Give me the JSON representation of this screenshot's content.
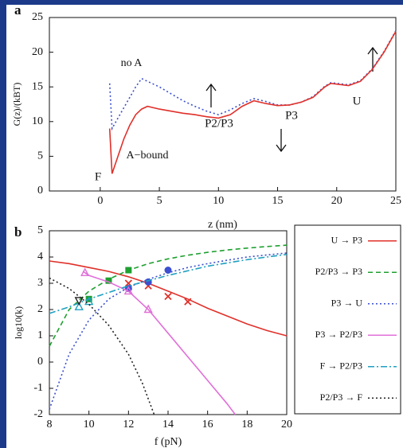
{
  "chart_data": [
    {
      "type": "line",
      "panel_label": "a",
      "x_label": "z (nm)",
      "y_label": "G(z)/(kBT)",
      "xlim": [
        -4.3,
        25
      ],
      "xticks": [
        0,
        5,
        10,
        15,
        20,
        25
      ],
      "ylim": [
        0,
        25
      ],
      "yticks": [
        0,
        5,
        10,
        15,
        20,
        25
      ],
      "x": [
        0.8,
        1.0,
        1.5,
        2,
        2.5,
        3,
        3.5,
        4,
        5,
        6,
        7,
        8,
        9,
        10,
        11,
        12,
        13,
        14,
        15,
        16,
        17,
        18,
        19,
        19.5,
        20,
        21,
        22,
        23,
        24,
        25
      ],
      "series": [
        {
          "name": "no A",
          "color": "#3b4fd0",
          "dash": "dotted",
          "values": [
            15.5,
            9,
            10.5,
            12,
            13.5,
            15,
            16.2,
            15.8,
            15,
            14,
            13,
            12.2,
            11.5,
            11,
            11.7,
            12.6,
            13.3,
            12.9,
            12.4,
            12.4,
            12.8,
            13.6,
            15.1,
            15.6,
            15.5,
            15.3,
            15.9,
            17.6,
            20.1,
            23.1
          ]
        },
        {
          "name": "A−bound",
          "color": "#e0302a",
          "dash": "solid",
          "values": [
            9,
            2.5,
            5,
            7.5,
            9.5,
            11,
            11.8,
            12.2,
            11.8,
            11.5,
            11.2,
            11,
            10.7,
            10.5,
            11,
            12.2,
            13,
            12.6,
            12.3,
            12.4,
            12.8,
            13.5,
            15,
            15.5,
            15.4,
            15.2,
            15.8,
            17.5,
            20,
            23
          ]
        }
      ],
      "annotations": [
        "F",
        "P2/P3",
        "P3",
        "U"
      ]
    },
    {
      "type": "line",
      "panel_label": "b",
      "x_label": "f (pN)",
      "y_label": "log10(k)",
      "xlim": [
        8,
        20
      ],
      "xticks": [
        8,
        10,
        12,
        14,
        16,
        18,
        20
      ],
      "ylim": [
        -2,
        5
      ],
      "yticks": [
        -2,
        -1,
        0,
        1,
        2,
        3,
        4,
        5
      ],
      "series": [
        {
          "name": "U → P3",
          "color": "#e0302a",
          "dash": "solid",
          "marker": "x",
          "x": [
            8,
            9,
            10,
            11,
            12,
            13,
            14,
            15,
            16,
            17,
            18,
            19,
            20
          ],
          "values": [
            3.85,
            3.75,
            3.6,
            3.45,
            3.25,
            3.0,
            2.7,
            2.4,
            2.05,
            1.75,
            1.45,
            1.2,
            1.0
          ],
          "marker_x": [
            12,
            13,
            14,
            15
          ],
          "marker_values": [
            3.0,
            2.9,
            2.5,
            2.3
          ]
        },
        {
          "name": "P2/P3 → P3",
          "color": "#1fa030",
          "dash": "dashed",
          "marker": "square",
          "x": [
            8,
            9,
            10,
            11,
            12,
            13,
            14,
            15,
            16,
            17,
            18,
            19,
            20
          ],
          "values": [
            0.6,
            2.0,
            2.7,
            3.15,
            3.5,
            3.75,
            3.93,
            4.07,
            4.18,
            4.27,
            4.34,
            4.4,
            4.45
          ],
          "marker_x": [
            10,
            11,
            12
          ],
          "marker_values": [
            2.4,
            3.1,
            3.5
          ]
        },
        {
          "name": "P3 → U",
          "color": "#3b4fd0",
          "dash": "dotted",
          "marker": "circle",
          "x": [
            8,
            9,
            10,
            11,
            12,
            13,
            14,
            15,
            16,
            17,
            18,
            19,
            20
          ],
          "values": [
            -1.8,
            0.3,
            1.6,
            2.4,
            2.85,
            3.15,
            3.4,
            3.6,
            3.75,
            3.88,
            4.0,
            4.08,
            4.15
          ],
          "marker_x": [
            12,
            13,
            14
          ],
          "marker_values": [
            2.8,
            3.05,
            3.5
          ]
        },
        {
          "name": "P3 → P2/P3",
          "color": "#e070d8",
          "dash": "solid",
          "marker": "triangle",
          "x": [
            9.7,
            10,
            11,
            12,
            13,
            14,
            15,
            16,
            17,
            17.4
          ],
          "values": [
            3.45,
            3.3,
            3.05,
            2.7,
            2.0,
            1.1,
            0.2,
            -0.7,
            -1.6,
            -2
          ],
          "marker_x": [
            9.8,
            12,
            13
          ],
          "marker_values": [
            3.4,
            2.7,
            2.0
          ]
        },
        {
          "name": "F → P2/P3",
          "color": "#20a0c0",
          "dash": "dashdot",
          "marker": "triangle",
          "x": [
            8,
            9,
            10,
            11,
            12,
            14,
            16,
            18,
            20
          ],
          "values": [
            1.85,
            2.1,
            2.4,
            2.65,
            2.9,
            3.3,
            3.65,
            3.9,
            4.1
          ],
          "marker_x": [
            9.5,
            10
          ],
          "marker_values": [
            2.1,
            2.3
          ]
        },
        {
          "name": "P2/P3 → F",
          "color": "#222222",
          "dash": "dotted",
          "marker": "triangle-down",
          "x": [
            8,
            9,
            10,
            11,
            12,
            12.7,
            13.3
          ],
          "values": [
            3.2,
            2.8,
            2.2,
            1.4,
            0.3,
            -0.8,
            -2
          ],
          "marker_x": [
            9.5
          ],
          "marker_values": [
            2.35
          ]
        }
      ]
    }
  ]
}
